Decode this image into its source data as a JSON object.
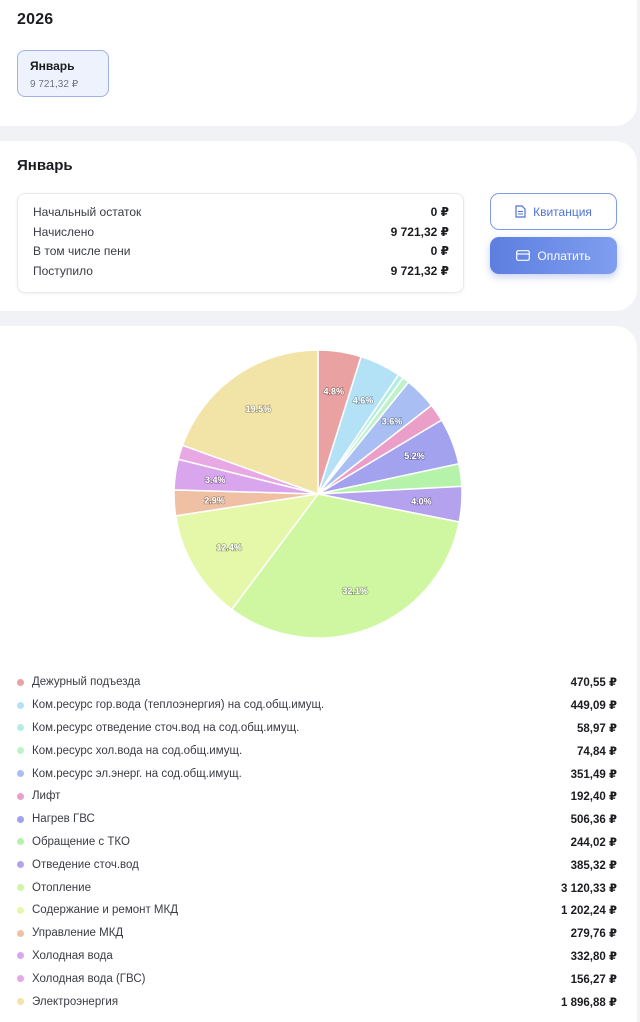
{
  "year": {
    "title": "2026",
    "months": [
      {
        "label": "Январь",
        "amount": "9 721,32 ₽"
      }
    ]
  },
  "month": {
    "title": "Январь",
    "summary": [
      {
        "label": "Начальный остаток",
        "value": "0 ₽"
      },
      {
        "label": "Начислено",
        "value": "9 721,32 ₽"
      },
      {
        "label": "В том числе пени",
        "value": "0 ₽"
      },
      {
        "label": "Поступило",
        "value": "9 721,32 ₽"
      }
    ],
    "receipt_button": "Квитанция",
    "pay_button": "Оплатить"
  },
  "chart_data": {
    "type": "pie",
    "slices": [
      {
        "label": "Дежурный подъезда",
        "amount": "470,55 ₽",
        "value": 470.55,
        "percent_label": "4.8%",
        "color": "#e9a1a1"
      },
      {
        "label": "Ком.ресурс гор.вода (теплоэнергия) на сод.общ.имущ.",
        "amount": "449,09 ₽",
        "value": 449.09,
        "percent_label": "4.6%",
        "color": "#b3e1f6"
      },
      {
        "label": "Ком.ресурс отведение сточ.вод на сод.общ.имущ.",
        "amount": "58,97 ₽",
        "value": 58.97,
        "percent_label": "",
        "color": "#b4ede4"
      },
      {
        "label": "Ком.ресурс хол.вода на сод.общ.имущ.",
        "amount": "74,84 ₽",
        "value": 74.84,
        "percent_label": "",
        "color": "#bff2c9"
      },
      {
        "label": "Ком.ресурс эл.энерг. на сод.общ.имущ.",
        "amount": "351,49 ₽",
        "value": 351.49,
        "percent_label": "3.6%",
        "color": "#a9bef3"
      },
      {
        "label": "Лифт",
        "amount": "192,40 ₽",
        "value": 192.4,
        "percent_label": "",
        "color": "#eb9fc8"
      },
      {
        "label": "Нагрев ГВС",
        "amount": "506,36 ₽",
        "value": 506.36,
        "percent_label": "5.2%",
        "color": "#a3a2ef"
      },
      {
        "label": "Обращение с ТКО",
        "amount": "244,02 ₽",
        "value": 244.02,
        "percent_label": "",
        "color": "#b5f3ab"
      },
      {
        "label": "Отведение сточ.вод",
        "amount": "385,32 ₽",
        "value": 385.32,
        "percent_label": "4.0%",
        "color": "#b4a2ee"
      },
      {
        "label": "Отопление",
        "amount": "3 120,33 ₽",
        "value": 3120.33,
        "percent_label": "32.1%",
        "color": "#cff7a2"
      },
      {
        "label": "Содержание и ремонт МКД",
        "amount": "1 202,24 ₽",
        "value": 1202.24,
        "percent_label": "12.4%",
        "color": "#e5f7a8"
      },
      {
        "label": "Управление МКД",
        "amount": "279,76 ₽",
        "value": 279.76,
        "percent_label": "2.9%",
        "color": "#efc0a4"
      },
      {
        "label": "Холодная вода",
        "amount": "332,80 ₽",
        "value": 332.8,
        "percent_label": "3.4%",
        "color": "#d9a6ee"
      },
      {
        "label": "Холодная вода (ГВС)",
        "amount": "156,27 ₽",
        "value": 156.27,
        "percent_label": "",
        "color": "#e8a8e3"
      },
      {
        "label": "Электроэнергия",
        "amount": "1 896,88 ₽",
        "value": 1896.88,
        "percent_label": "19.5%",
        "color": "#f2e4a7"
      }
    ]
  }
}
